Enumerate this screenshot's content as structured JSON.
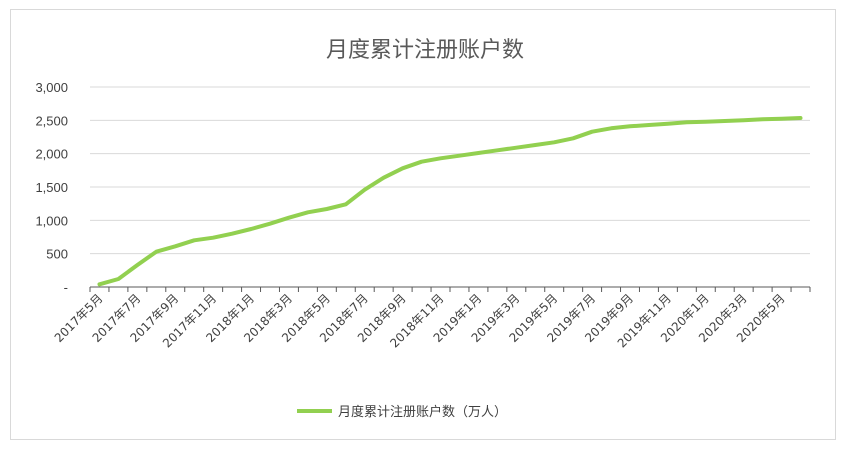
{
  "chart_data": {
    "type": "line",
    "title": "月度累计注册账户数",
    "xlabel": "",
    "ylabel": "",
    "ylim": [
      0,
      3000
    ],
    "y_ticks": [
      {
        "value": 0,
        "label": "-"
      },
      {
        "value": 500,
        "label": "500"
      },
      {
        "value": 1000,
        "label": "1,000"
      },
      {
        "value": 1500,
        "label": "1,500"
      },
      {
        "value": 2000,
        "label": "2,000"
      },
      {
        "value": 2500,
        "label": "2,500"
      },
      {
        "value": 3000,
        "label": "3,000"
      }
    ],
    "grid": "horizontal",
    "legend_position": "bottom",
    "line_color": "#92d050",
    "categories": [
      "2017年5月",
      "2017年6月",
      "2017年7月",
      "2017年8月",
      "2017年9月",
      "2017年10月",
      "2017年11月",
      "2017年12月",
      "2018年1月",
      "2018年2月",
      "2018年3月",
      "2018年4月",
      "2018年5月",
      "2018年6月",
      "2018年7月",
      "2018年8月",
      "2018年9月",
      "2018年10月",
      "2018年11月",
      "2018年12月",
      "2019年1月",
      "2019年2月",
      "2019年3月",
      "2019年4月",
      "2019年5月",
      "2019年6月",
      "2019年7月",
      "2019年8月",
      "2019年9月",
      "2019年10月",
      "2019年11月",
      "2019年12月",
      "2020年1月",
      "2020年2月",
      "2020年3月",
      "2020年4月",
      "2020年5月",
      "2020年6月"
    ],
    "x_tick_labels": [
      "2017年5月",
      "2017年7月",
      "2017年9月",
      "2017年11月",
      "2018年1月",
      "2018年3月",
      "2018年5月",
      "2018年7月",
      "2018年9月",
      "2018年11月",
      "2019年1月",
      "2019年3月",
      "2019年5月",
      "2019年7月",
      "2019年9月",
      "2019年11月",
      "2020年1月",
      "2020年3月",
      "2020年5月"
    ],
    "series": [
      {
        "name": "月度累计注册账户数（万人）",
        "values": [
          40,
          120,
          330,
          530,
          610,
          700,
          740,
          800,
          870,
          950,
          1040,
          1120,
          1170,
          1240,
          1460,
          1640,
          1780,
          1880,
          1930,
          1970,
          2010,
          2050,
          2090,
          2130,
          2170,
          2230,
          2330,
          2380,
          2410,
          2430,
          2450,
          2470,
          2480,
          2490,
          2500,
          2515,
          2525,
          2535
        ]
      }
    ]
  }
}
